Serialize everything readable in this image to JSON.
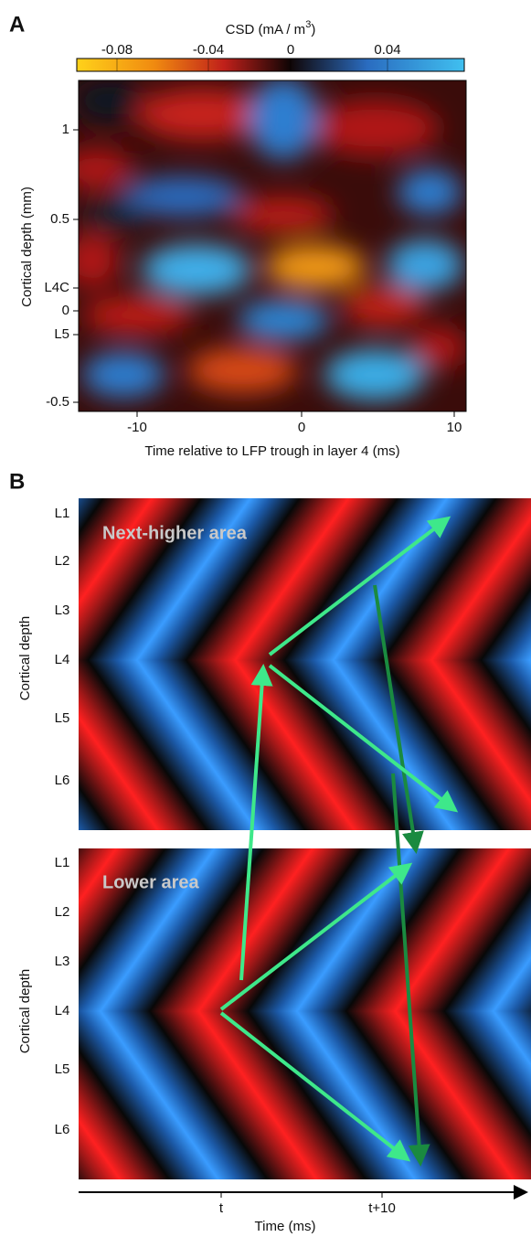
{
  "panel_a": {
    "label": "A",
    "colorbar": {
      "title": "CSD (mA / m",
      "title_sup": "3",
      "title_end": ")",
      "ticks": [
        "-0.08",
        "-0.04",
        "0",
        "0.04"
      ]
    },
    "y_label": "Cortical depth (mm)",
    "y_ticks": [
      "1",
      "0.5",
      "L4C",
      "0",
      "L5",
      "-0.5"
    ],
    "x_ticks": [
      "-10",
      "0",
      "10"
    ],
    "x_label": "Time relative to LFP trough in layer 4 (ms)"
  },
  "panel_b": {
    "label": "B",
    "top": {
      "title": "Next-higher area",
      "y_label": "Cortical depth",
      "layers": [
        "L1",
        "L2",
        "L3",
        "L4",
        "L5",
        "L6"
      ]
    },
    "bottom": {
      "title": "Lower area",
      "y_label": "Cortical depth",
      "layers": [
        "L1",
        "L2",
        "L3",
        "L4",
        "L5",
        "L6"
      ]
    },
    "x_ticks": [
      "t",
      "t+10"
    ],
    "x_label": "Time (ms)"
  }
}
